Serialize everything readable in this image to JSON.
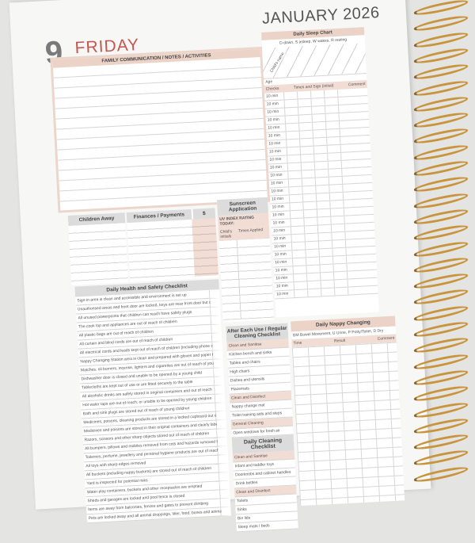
{
  "header": {
    "day_number": "9",
    "day_name": "FRIDAY",
    "month_year": "JANUARY 2026"
  },
  "family": {
    "title": "FAMILY COMMUNICATION / NOTES / ACTIVITIES"
  },
  "sleep": {
    "title": "Daily Sleep Chart",
    "legend": "D down, S asleep, W wakes, R resting",
    "child_name": "Child's name",
    "age": "Age",
    "checks": "Checks",
    "times": "Times and Sign (initial)",
    "comment": "Comment",
    "interval": "10 min",
    "rows": 26
  },
  "children_away": {
    "title": "Children Away"
  },
  "finances": {
    "title": "Finances / Payments",
    "amount": "$"
  },
  "sunscreen": {
    "title": "Sunscreen Application",
    "uv": "UV INDEX RATING TODAY:",
    "initials": "Child's initials",
    "times": "Times Applied"
  },
  "health": {
    "title": "Daily Health and Safety Checklist",
    "items": [
      "Sign-in area is clean and accessible and environment is set up",
      "Unauthorised areas and front door are locked, keys are near front door but out of reach of children",
      "All unused powerpoints that children can reach have safety plugs",
      "The cook top and appliances are out of reach of children",
      "All plastic bags are out of reach of children",
      "All curtain and blind cords are out of reach of children",
      "All electrical cords and leads kept out of reach of children (including phone chargers)",
      "Nappy Changing Station area is clean and prepared with gloves and paper towels. Toilet seat and step are in place if required.",
      "Matches, oil burners, incense, lighters and cigarettes are out of reach of young children",
      "Dishwasher door is closed and unable to be opened by a young child",
      "Tablecloths are kept out of use or are fitted securely to the table",
      "All alcoholic drinks are safely stored in original containers and out of reach",
      "Hot water taps are out of reach, or unable to be opened by young children",
      "Bath and sink plugs are stored out of reach of young children",
      "Medicines, poisons, cleaning products are stored in a locked cupboard out of reach",
      "Medicines and poisons are stored in their original containers and clearly labelled",
      "Razors, scissors and other sharp objects stored out of reach of children",
      "All bumpers, pillows and mobiles removed from cots and hazards removed from sleeping spaces",
      "Toiletries, perfume, jewellery and personal hygiene products are out of reach",
      "All toys with sharp edges removed",
      "All buckets (including nappy buckets) are stored out of reach of children",
      "Yard is inspected for potential risks",
      "Water play containers, buckets and other receptacles are emptied",
      "Sheds and garages are locked and pool fence is closed",
      "Items are away from balconies, fences and gates to prevent climbing",
      "Pets are locked away and all animal droppings, litter, food, bones and animal toys"
    ]
  },
  "after_use": {
    "title": "After Each Use / Regular Cleaning Checklist",
    "items": [
      {
        "h": true,
        "t": "Clean and Sanitise"
      },
      {
        "t": "Kitchen bench and sinks"
      },
      {
        "t": "Tables and chairs"
      },
      {
        "t": "High chairs"
      },
      {
        "t": "Dishes and utensils"
      },
      {
        "t": "Placemats"
      },
      {
        "h": true,
        "t": "Clean and Disinfect"
      },
      {
        "t": "Nappy change mat"
      },
      {
        "t": "Toilet training aids and steps"
      },
      {
        "h": true,
        "t": "General Cleaning"
      },
      {
        "t": "Open windows for fresh air"
      }
    ]
  },
  "daily_cleaning": {
    "title": "Daily Cleaning Checklist",
    "items": [
      {
        "h": true,
        "t": "Clean and Sanitise"
      },
      {
        "t": "Infant and toddler toys"
      },
      {
        "t": "Doorknobs and cabinet handles"
      },
      {
        "t": "Drink bottles"
      },
      {
        "h": true,
        "t": "Clean and Disinfect"
      },
      {
        "t": "Toilets"
      },
      {
        "t": "Sinks"
      },
      {
        "t": "Bin lids"
      },
      {
        "t": "Sleep mats / beds"
      }
    ]
  },
  "nappy": {
    "title": "Daily Nappy Changing",
    "legend": "BM Bowel Movement, U Urine, P Potty/Toilet, D Dry",
    "time": "Time",
    "result": "Result",
    "comment": "Comment"
  },
  "colors": {
    "accent": "#c4574f",
    "pink": "#ecd3c8",
    "grey_header": "#dcdcdc",
    "rings": "#c8953e"
  }
}
